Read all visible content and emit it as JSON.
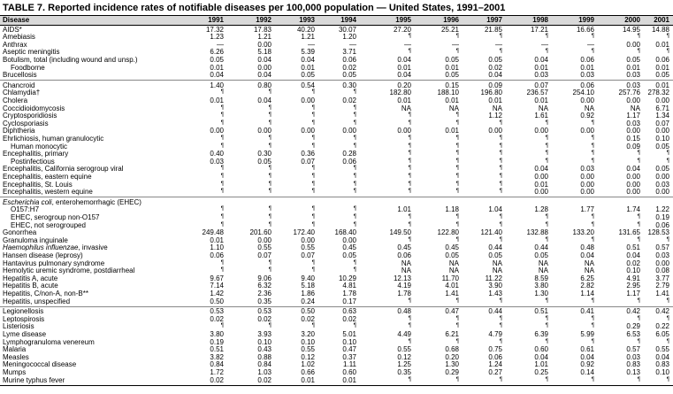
{
  "title": "TABLE 7. Reported incidence rates of notifiable diseases per 100,000 population — United States, 1991–2001",
  "columns": [
    "Disease",
    "1991",
    "1992",
    "1993",
    "1994",
    "1995",
    "1996",
    "1997",
    "1998",
    "1999",
    "2000",
    "2001"
  ],
  "groups": [
    {
      "rows": [
        {
          "label": [
            {
              "text": "AIDS*"
            }
          ],
          "values": [
            "17.32",
            "17.83",
            "40.20",
            "30.07",
            "27.20",
            "25.21",
            "21.85",
            "17.21",
            "16.66",
            "14.95",
            "14.88"
          ]
        },
        {
          "label": [
            {
              "text": "Amebiasis"
            }
          ],
          "values": [
            "1.23",
            "1.21",
            "1.21",
            "1.20",
            "¶",
            "¶",
            "¶",
            "¶",
            "¶",
            "¶",
            "¶"
          ]
        },
        {
          "label": [
            {
              "text": "Anthrax"
            }
          ],
          "values": [
            "—",
            "0.00",
            "—",
            "—",
            "—",
            "—",
            "—",
            "—",
            "—",
            "0.00",
            "0.01"
          ]
        },
        {
          "label": [
            {
              "text": "Aseptic meningitis"
            }
          ],
          "values": [
            "6.26",
            "5.18",
            "5.39",
            "3.71",
            "¶",
            "¶",
            "¶",
            "¶",
            "¶",
            "¶",
            "¶"
          ]
        },
        {
          "label": [
            {
              "text": "Botulism, total (including wound and unsp.)"
            }
          ],
          "values": [
            "0.05",
            "0.04",
            "0.04",
            "0.06",
            "0.04",
            "0.05",
            "0.05",
            "0.04",
            "0.06",
            "0.05",
            "0.06"
          ]
        },
        {
          "label": [
            {
              "text": "Foodborne"
            }
          ],
          "indent": true,
          "values": [
            "0.01",
            "0.00",
            "0.01",
            "0.02",
            "0.01",
            "0.01",
            "0.02",
            "0.01",
            "0.01",
            "0.01",
            "0.01"
          ]
        },
        {
          "label": [
            {
              "text": "Brucellosis"
            }
          ],
          "values": [
            "0.04",
            "0.04",
            "0.05",
            "0.05",
            "0.04",
            "0.05",
            "0.04",
            "0.03",
            "0.03",
            "0.03",
            "0.05"
          ]
        }
      ]
    },
    {
      "rows": [
        {
          "label": [
            {
              "text": "Chancroid"
            }
          ],
          "values": [
            "1.40",
            "0.80",
            "0.54",
            "0.30",
            "0.20",
            "0.15",
            "0.09",
            "0.07",
            "0.06",
            "0.03",
            "0.01"
          ]
        },
        {
          "label": [
            {
              "text": "Chlamydia†"
            }
          ],
          "values": [
            "¶",
            "¶",
            "¶",
            "¶",
            "182.80",
            "188.10",
            "196.80",
            "236.57",
            "254.10",
            "257.76",
            "278.32"
          ]
        },
        {
          "label": [
            {
              "text": "Cholera"
            }
          ],
          "values": [
            "0.01",
            "0.04",
            "0.00",
            "0.02",
            "0.01",
            "0.01",
            "0.01",
            "0.01",
            "0.00",
            "0.00",
            "0.00"
          ]
        },
        {
          "label": [
            {
              "text": "Coccidioidomycosis"
            }
          ],
          "values": [
            "¶",
            "¶",
            "¶",
            "¶",
            "NA",
            "NA",
            "NA",
            "NA",
            "NA",
            "NA",
            "6.71"
          ]
        },
        {
          "label": [
            {
              "text": "Cryptosporidiosis"
            }
          ],
          "values": [
            "¶",
            "¶",
            "¶",
            "¶",
            "¶",
            "¶",
            "1.12",
            "1.61",
            "0.92",
            "1.17",
            "1.34"
          ]
        },
        {
          "label": [
            {
              "text": "Cyclosporiasis"
            }
          ],
          "values": [
            "¶",
            "¶",
            "¶",
            "¶",
            "¶",
            "¶",
            "¶",
            "¶",
            "¶",
            "0.03",
            "0.07"
          ]
        },
        {
          "label": [
            {
              "text": "Diphtheria"
            }
          ],
          "values": [
            "0.00",
            "0.00",
            "0.00",
            "0.00",
            "0.00",
            "0.01",
            "0.00",
            "0.00",
            "0.00",
            "0.00",
            "0.00"
          ]
        },
        {
          "label": [
            {
              "text": "Ehrlichiosis, human granulocytic"
            }
          ],
          "values": [
            "¶",
            "¶",
            "¶",
            "¶",
            "¶",
            "¶",
            "¶",
            "¶",
            "¶",
            "0.15",
            "0.10"
          ]
        },
        {
          "label": [
            {
              "text": "Human monocytic"
            }
          ],
          "indent": true,
          "values": [
            "¶",
            "¶",
            "¶",
            "¶",
            "¶",
            "¶",
            "¶",
            "¶",
            "¶",
            "0.09",
            "0.05"
          ]
        },
        {
          "label": [
            {
              "text": "Encephalitis, primary"
            }
          ],
          "values": [
            "0.40",
            "0.30",
            "0.36",
            "0.28",
            "¶",
            "¶",
            "¶",
            "¶",
            "¶",
            "¶",
            "¶"
          ]
        },
        {
          "label": [
            {
              "text": "Postinfectious"
            }
          ],
          "indent": true,
          "values": [
            "0.03",
            "0.05",
            "0.07",
            "0.06",
            "¶",
            "¶",
            "¶",
            "¶",
            "¶",
            "¶",
            "¶"
          ]
        },
        {
          "label": [
            {
              "text": "Encephalitis, California serogroup viral"
            }
          ],
          "values": [
            "¶",
            "¶",
            "¶",
            "¶",
            "¶",
            "¶",
            "¶",
            "0.04",
            "0.03",
            "0.04",
            "0.05"
          ]
        },
        {
          "label": [
            {
              "text": "Encephalitis, eastern equine"
            }
          ],
          "values": [
            "¶",
            "¶",
            "¶",
            "¶",
            "¶",
            "¶",
            "¶",
            "0.00",
            "0.00",
            "0.00",
            "0.00"
          ]
        },
        {
          "label": [
            {
              "text": "Encephalitis, St. Louis"
            }
          ],
          "values": [
            "¶",
            "¶",
            "¶",
            "¶",
            "¶",
            "¶",
            "¶",
            "0.01",
            "0.00",
            "0.00",
            "0.03"
          ]
        },
        {
          "label": [
            {
              "text": "Encephalitis, western equine"
            }
          ],
          "values": [
            "¶",
            "¶",
            "¶",
            "¶",
            "¶",
            "¶",
            "¶",
            "0.00",
            "0.00",
            "0.00",
            "0.00"
          ]
        }
      ]
    },
    {
      "rows": [
        {
          "label": [
            {
              "text": "Escherichia coli",
              "italic": true
            },
            {
              "text": ", enterohemorrhagic (EHEC)"
            }
          ],
          "values": []
        },
        {
          "label": [
            {
              "text": "O157:H7"
            }
          ],
          "indent": true,
          "values": [
            "¶",
            "¶",
            "¶",
            "¶",
            "1.01",
            "1.18",
            "1.04",
            "1.28",
            "1.77",
            "1.74",
            "1.22"
          ]
        },
        {
          "label": [
            {
              "text": "EHEC, serogroup non-O157"
            }
          ],
          "indent": true,
          "values": [
            "¶",
            "¶",
            "¶",
            "¶",
            "¶",
            "¶",
            "¶",
            "¶",
            "¶",
            "¶",
            "0.19"
          ]
        },
        {
          "label": [
            {
              "text": "EHEC, not serogrouped"
            }
          ],
          "indent": true,
          "values": [
            "¶",
            "¶",
            "¶",
            "¶",
            "¶",
            "¶",
            "¶",
            "¶",
            "¶",
            "¶",
            "0.06"
          ]
        },
        {
          "label": [
            {
              "text": "Gonorrhea"
            }
          ],
          "values": [
            "249.48",
            "201.60",
            "172.40",
            "168.40",
            "149.50",
            "122.80",
            "121.40",
            "132.88",
            "133.20",
            "131.65",
            "128.53"
          ]
        },
        {
          "label": [
            {
              "text": "Granuloma inguinale"
            }
          ],
          "values": [
            "0.01",
            "0.00",
            "0.00",
            "0.00",
            "¶",
            "¶",
            "¶",
            "¶",
            "¶",
            "¶",
            "¶"
          ]
        },
        {
          "label": [
            {
              "text": "Haemophilus influenzae",
              "italic": true
            },
            {
              "text": ", invasive"
            }
          ],
          "values": [
            "1.10",
            "0.55",
            "0.55",
            "0.45",
            "0.45",
            "0.45",
            "0.44",
            "0.44",
            "0.48",
            "0.51",
            "0.57"
          ]
        },
        {
          "label": [
            {
              "text": "Hansen disease (leprosy)"
            }
          ],
          "values": [
            "0.06",
            "0.07",
            "0.07",
            "0.05",
            "0.06",
            "0.05",
            "0.05",
            "0.05",
            "0.04",
            "0.04",
            "0.03"
          ]
        },
        {
          "label": [
            {
              "text": "Hantavirus pulmonary syndrome"
            }
          ],
          "values": [
            "¶",
            "¶",
            "¶",
            "¶",
            "NA",
            "NA",
            "NA",
            "NA",
            "NA",
            "0.02",
            "0.00"
          ]
        },
        {
          "label": [
            {
              "text": "Hemolytic uremic syndrome, postdiarrheal"
            }
          ],
          "values": [
            "¶",
            "¶",
            "¶",
            "¶",
            "NA",
            "NA",
            "NA",
            "NA",
            "NA",
            "0.10",
            "0.08"
          ]
        },
        {
          "label": [
            {
              "text": "Hepatitis A, acute"
            }
          ],
          "values": [
            "9.67",
            "9.06",
            "9.40",
            "10.29",
            "12.13",
            "11.70",
            "11.22",
            "8.59",
            "6.25",
            "4.91",
            "3.77"
          ]
        },
        {
          "label": [
            {
              "text": "Hepatitis B, acute"
            }
          ],
          "values": [
            "7.14",
            "6.32",
            "5.18",
            "4.81",
            "4.19",
            "4.01",
            "3.90",
            "3.80",
            "2.82",
            "2.95",
            "2.79"
          ]
        },
        {
          "label": [
            {
              "text": "Hepatitis, C/non-A, non-B**"
            }
          ],
          "values": [
            "1.42",
            "2.36",
            "1.86",
            "1.78",
            "1.78",
            "1.41",
            "1.43",
            "1.30",
            "1.14",
            "1.17",
            "1.41"
          ]
        },
        {
          "label": [
            {
              "text": "Hepatitis, unspecified"
            }
          ],
          "values": [
            "0.50",
            "0.35",
            "0.24",
            "0.17",
            "¶",
            "¶",
            "¶",
            "¶",
            "¶",
            "¶",
            "¶"
          ]
        }
      ]
    },
    {
      "rows": [
        {
          "label": [
            {
              "text": "Legionellosis"
            }
          ],
          "values": [
            "0.53",
            "0.53",
            "0.50",
            "0.63",
            "0.48",
            "0.47",
            "0.44",
            "0.51",
            "0.41",
            "0.42",
            "0.42"
          ]
        },
        {
          "label": [
            {
              "text": "Leptospirosis"
            }
          ],
          "values": [
            "0.02",
            "0.02",
            "0.02",
            "0.02",
            "¶",
            "¶",
            "¶",
            "¶",
            "¶",
            "¶",
            "¶"
          ]
        },
        {
          "label": [
            {
              "text": "Listeriosis"
            }
          ],
          "values": [
            "¶",
            "¶",
            "¶",
            "¶",
            "¶",
            "¶",
            "¶",
            "¶",
            "¶",
            "0.29",
            "0.22"
          ]
        },
        {
          "label": [
            {
              "text": "Lyme disease"
            }
          ],
          "values": [
            "3.80",
            "3.93",
            "3.20",
            "5.01",
            "4.49",
            "6.21",
            "4.79",
            "6.39",
            "5.99",
            "6.53",
            "6.05"
          ]
        },
        {
          "label": [
            {
              "text": "Lymphogranuloma venereum"
            }
          ],
          "values": [
            "0.19",
            "0.10",
            "0.10",
            "0.10",
            "¶",
            "¶",
            "¶",
            "¶",
            "¶",
            "¶",
            "¶"
          ]
        },
        {
          "label": [
            {
              "text": "Malaria"
            }
          ],
          "values": [
            "0.51",
            "0.43",
            "0.55",
            "0.47",
            "0.55",
            "0.68",
            "0.75",
            "0.60",
            "0.61",
            "0.57",
            "0.55"
          ]
        },
        {
          "label": [
            {
              "text": "Measles"
            }
          ],
          "values": [
            "3.82",
            "0.88",
            "0.12",
            "0.37",
            "0.12",
            "0.20",
            "0.06",
            "0.04",
            "0.04",
            "0.03",
            "0.04"
          ]
        },
        {
          "label": [
            {
              "text": "Meningococcal disease"
            }
          ],
          "values": [
            "0.84",
            "0.84",
            "1.02",
            "1.11",
            "1.25",
            "1.30",
            "1.24",
            "1.01",
            "0.92",
            "0.83",
            "0.83"
          ]
        },
        {
          "label": [
            {
              "text": "Mumps"
            }
          ],
          "values": [
            "1.72",
            "1.03",
            "0.66",
            "0.60",
            "0.35",
            "0.29",
            "0.27",
            "0.25",
            "0.14",
            "0.13",
            "0.10"
          ]
        },
        {
          "label": [
            {
              "text": "Murine typhus fever"
            }
          ],
          "values": [
            "0.02",
            "0.02",
            "0.01",
            "0.01",
            "¶",
            "¶",
            "¶",
            "¶",
            "¶",
            "¶",
            "¶"
          ]
        }
      ]
    }
  ]
}
